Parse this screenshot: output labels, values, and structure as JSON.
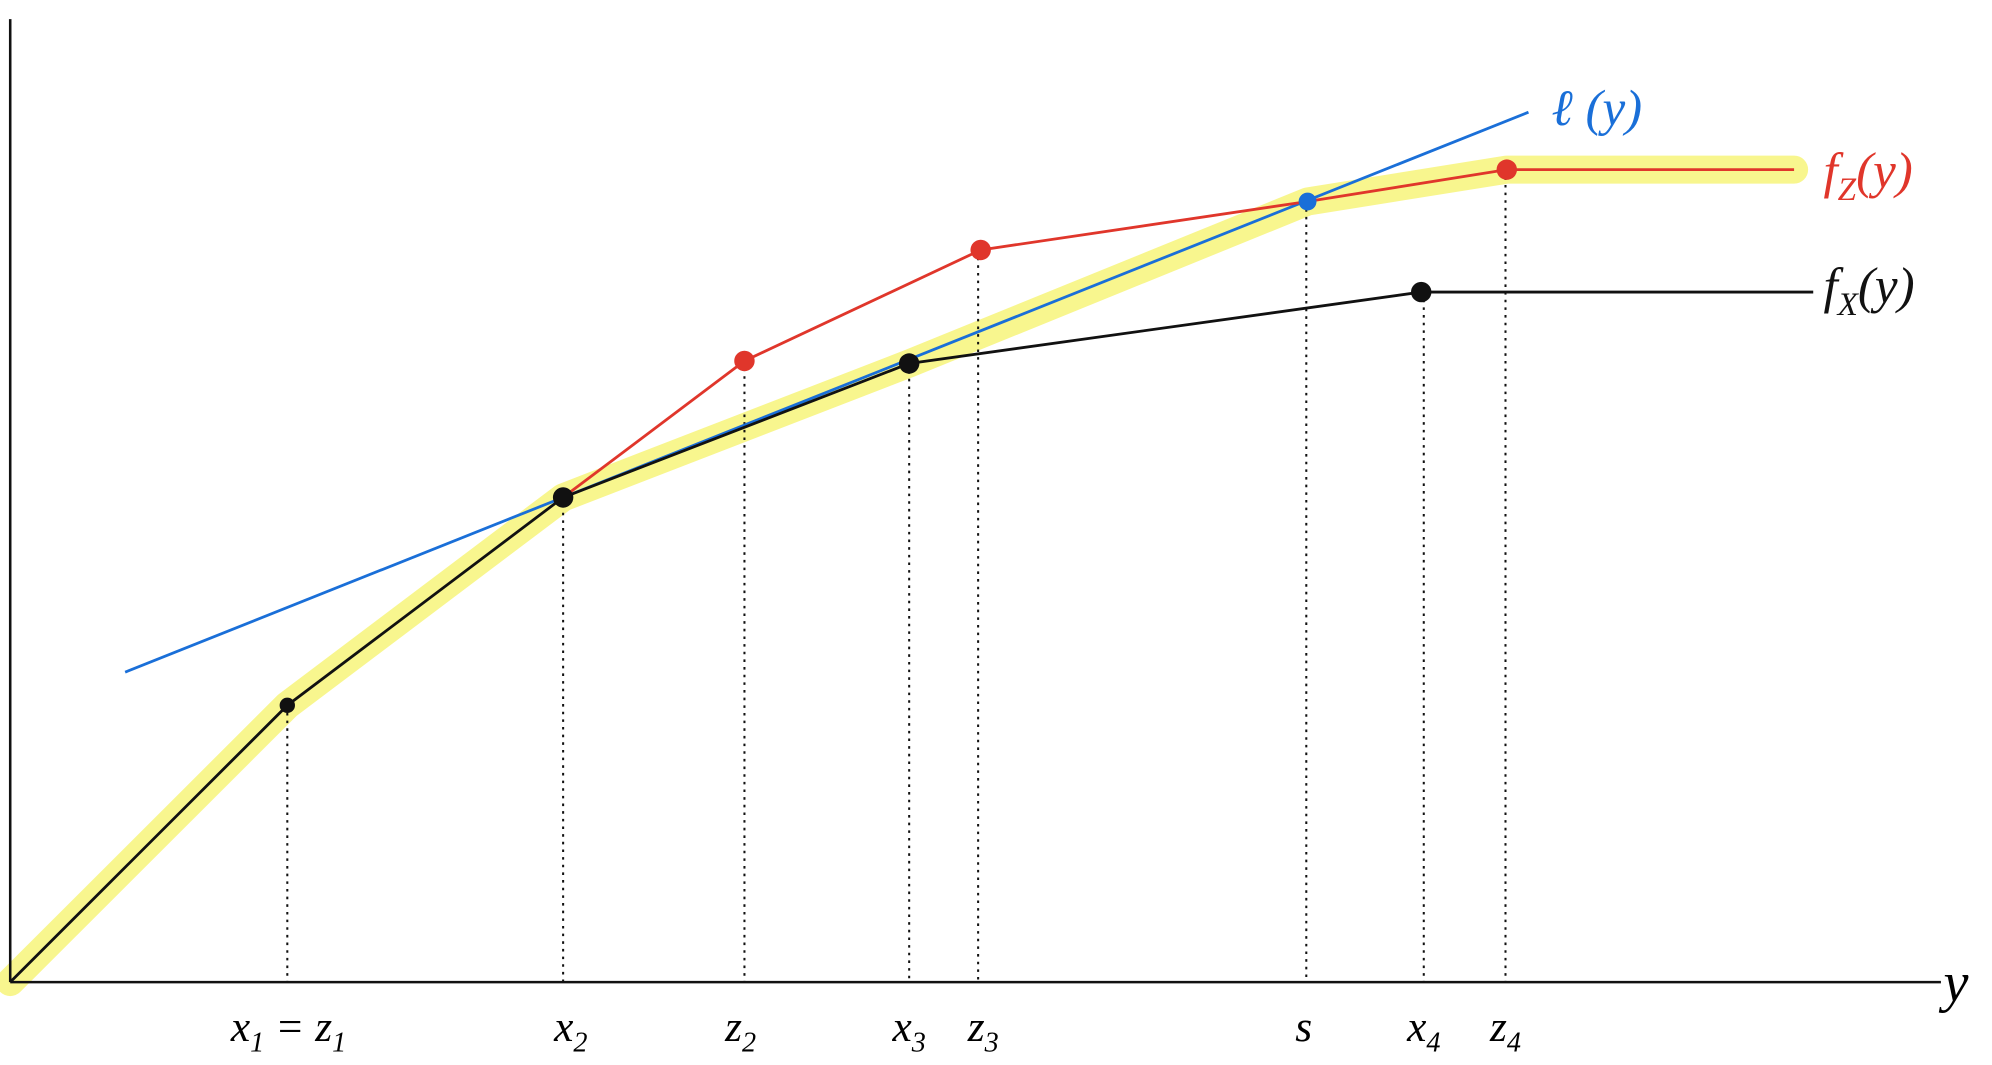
{
  "axis_label": "y",
  "curve_labels": [
    {
      "color": "#1a6fd8",
      "parts": [
        {
          "text": "ℓ"
        },
        {
          "text": " (y)"
        }
      ]
    },
    {
      "color": "#e0362b",
      "parts": [
        {
          "text": "f"
        },
        {
          "text": "Z",
          "sub": true
        },
        {
          "text": "(y)"
        }
      ]
    },
    {
      "color": "#111111",
      "parts": [
        {
          "text": "f"
        },
        {
          "text": "X",
          "sub": true
        },
        {
          "text": "(y)"
        }
      ]
    }
  ],
  "tick_labels": [
    {
      "parts": [
        {
          "text": "x"
        },
        {
          "text": "1",
          "sub": true
        },
        {
          "text": " = z"
        },
        {
          "text": "1",
          "sub": true
        }
      ]
    },
    {
      "parts": [
        {
          "text": "x"
        },
        {
          "text": "2",
          "sub": true
        }
      ]
    },
    {
      "parts": [
        {
          "text": "z"
        },
        {
          "text": "2",
          "sub": true
        }
      ]
    },
    {
      "parts": [
        {
          "text": "x"
        },
        {
          "text": "3",
          "sub": true
        }
      ]
    },
    {
      "parts": [
        {
          "text": "z"
        },
        {
          "text": "3",
          "sub": true
        }
      ]
    },
    {
      "parts": [
        {
          "text": "s"
        }
      ]
    },
    {
      "parts": [
        {
          "text": "x"
        },
        {
          "text": "4",
          "sub": true
        }
      ]
    },
    {
      "parts": [
        {
          "text": "z"
        },
        {
          "text": "4",
          "sub": true
        }
      ]
    }
  ]
}
